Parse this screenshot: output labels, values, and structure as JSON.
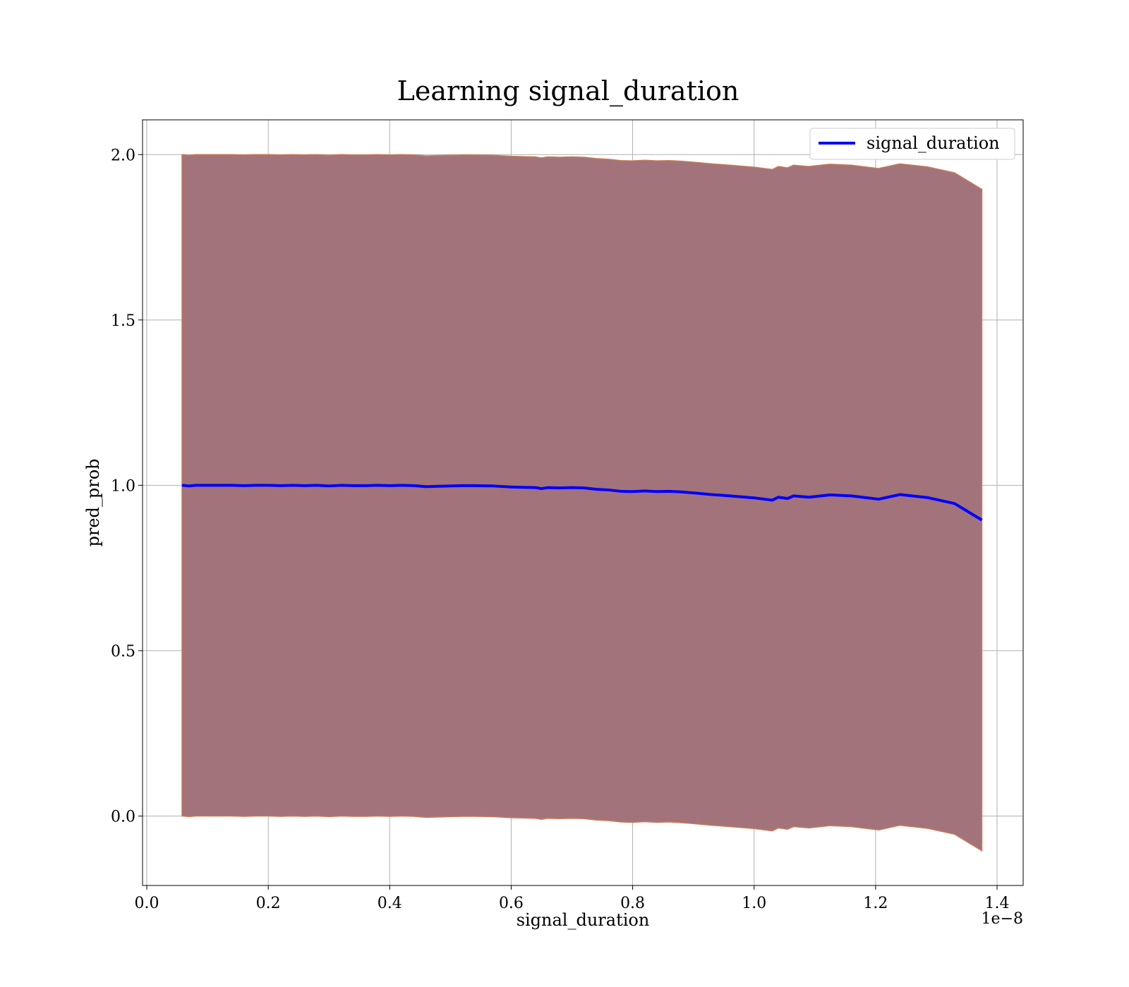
{
  "chart_data": {
    "type": "area",
    "title": "Learning signal_duration",
    "xlabel": "signal_duration",
    "ylabel": "pred_prob",
    "x_offset_label": "1e−8",
    "xlim": [
      -0.007,
      1.443
    ],
    "ylim": [
      -0.21,
      2.105
    ],
    "xticks": [
      0.0,
      0.2,
      0.4,
      0.6,
      0.8,
      1.0,
      1.2,
      1.4
    ],
    "xtick_labels": [
      "0.0",
      "0.2",
      "0.4",
      "0.6",
      "0.8",
      "1.0",
      "1.2",
      "1.4"
    ],
    "yticks": [
      0.0,
      0.5,
      1.0,
      1.5,
      2.0
    ],
    "ytick_labels": [
      "0.0",
      "0.5",
      "1.0",
      "1.5",
      "2.0"
    ],
    "grid": true,
    "legend_position": "top-right",
    "series": [
      {
        "name": "signal_duration",
        "color": "#0000ff",
        "x": [
          0.058,
          0.07,
          0.08,
          0.1,
          0.12,
          0.14,
          0.16,
          0.18,
          0.2,
          0.22,
          0.24,
          0.26,
          0.28,
          0.3,
          0.32,
          0.34,
          0.36,
          0.38,
          0.4,
          0.42,
          0.44,
          0.46,
          0.48,
          0.5,
          0.52,
          0.54,
          0.57,
          0.6,
          0.62,
          0.64,
          0.65,
          0.66,
          0.68,
          0.7,
          0.72,
          0.74,
          0.76,
          0.78,
          0.8,
          0.82,
          0.84,
          0.86,
          0.88,
          0.9,
          0.93,
          0.96,
          1.0,
          1.03,
          1.04,
          1.055,
          1.065,
          1.09,
          1.125,
          1.16,
          1.205,
          1.24,
          1.285,
          1.33,
          1.375
        ],
        "values": [
          1.0,
          0.998,
          1.0,
          1.0,
          1.0,
          1.0,
          0.999,
          1.0,
          1.0,
          0.999,
          1.0,
          0.999,
          1.0,
          0.998,
          1.0,
          0.999,
          0.999,
          1.0,
          0.999,
          1.0,
          0.999,
          0.996,
          0.997,
          0.998,
          0.999,
          0.999,
          0.998,
          0.995,
          0.994,
          0.993,
          0.99,
          0.993,
          0.992,
          0.993,
          0.992,
          0.988,
          0.986,
          0.982,
          0.981,
          0.983,
          0.981,
          0.982,
          0.98,
          0.977,
          0.972,
          0.968,
          0.962,
          0.955,
          0.964,
          0.96,
          0.968,
          0.964,
          0.971,
          0.968,
          0.958,
          0.972,
          0.963,
          0.945,
          0.895
        ],
        "band_half_width": 1.0
      }
    ]
  }
}
